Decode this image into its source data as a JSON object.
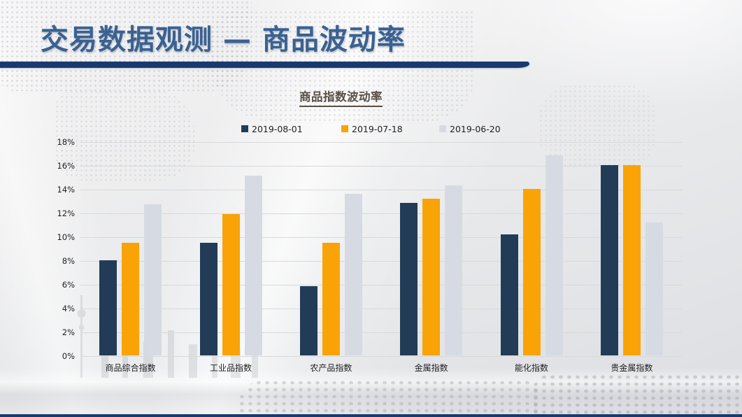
{
  "slide": {
    "title": "交易数据观测 — 商品波动率"
  },
  "colors": {
    "header_title_blue": "#3a6191",
    "accent_navy_bar": "#1a3a6f",
    "chart_title_gray": "#594f45",
    "gridline": "#d8d9da",
    "series_navy": "#223c57",
    "series_orange": "#f9a306",
    "series_lightgray": "#d6dbe3"
  },
  "chart_data": {
    "type": "bar",
    "title": "商品指数波动率",
    "categories": [
      "商品综合指数",
      "工业品指数",
      "农产品指数",
      "金属指数",
      "能化指数",
      "贵金属指数"
    ],
    "series": [
      {
        "name": "2019-08-01",
        "color": "#223c57",
        "values": [
          8.0,
          9.5,
          5.8,
          12.8,
          10.2,
          16.0
        ]
      },
      {
        "name": "2019-07-18",
        "color": "#f9a306",
        "values": [
          9.5,
          11.9,
          9.5,
          13.2,
          14.0,
          16.0
        ]
      },
      {
        "name": "2019-06-20",
        "color": "#d6dbe3",
        "values": [
          12.7,
          15.1,
          13.6,
          14.3,
          16.8,
          11.2
        ]
      }
    ],
    "xlabel": "",
    "ylabel": "",
    "ylim": [
      0,
      18
    ],
    "ytick_step": 2,
    "ytick_format": "percent",
    "grid": true,
    "legend_position": "top"
  }
}
